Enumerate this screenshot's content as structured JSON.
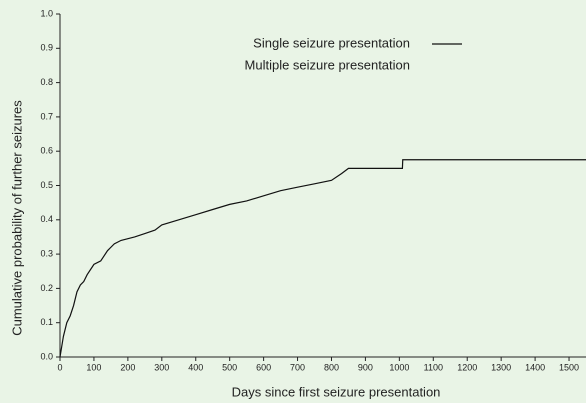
{
  "chart_data": {
    "type": "line",
    "x_label": "Days since first seizure presentation",
    "y_label": "Cumulative probability of further seizures",
    "series": [
      {
        "name": "Single seizure presentation",
        "color": "#111111",
        "x": [
          0,
          5,
          10,
          20,
          30,
          40,
          50,
          60,
          70,
          80,
          100,
          120,
          140,
          150,
          160,
          180,
          200,
          220,
          250,
          280,
          300,
          350,
          400,
          450,
          500,
          550,
          600,
          650,
          700,
          750,
          800,
          830,
          850,
          1009,
          1010,
          1550
        ],
        "values": [
          0,
          0.03,
          0.06,
          0.1,
          0.12,
          0.15,
          0.19,
          0.21,
          0.22,
          0.24,
          0.27,
          0.28,
          0.31,
          0.32,
          0.33,
          0.34,
          0.345,
          0.35,
          0.36,
          0.37,
          0.385,
          0.4,
          0.415,
          0.43,
          0.445,
          0.455,
          0.47,
          0.485,
          0.495,
          0.505,
          0.515,
          0.535,
          0.55,
          0.55,
          0.575,
          0.575
        ]
      },
      {
        "name": "Multiple seizure presentation"
      }
    ],
    "xlim": [
      0,
      1550
    ],
    "xticks": [
      0,
      100,
      200,
      300,
      400,
      500,
      600,
      700,
      800,
      900,
      1000,
      1100,
      1200,
      1300,
      1400,
      1500
    ],
    "ylim": [
      0,
      1
    ],
    "yticks": [
      {
        "value": 0,
        "label": "0.0"
      },
      0.1,
      0.2,
      0.3,
      0.4,
      0.5,
      0.6,
      0.7,
      0.8,
      0.9,
      {
        "value": 1,
        "label": "1.0"
      }
    ]
  }
}
